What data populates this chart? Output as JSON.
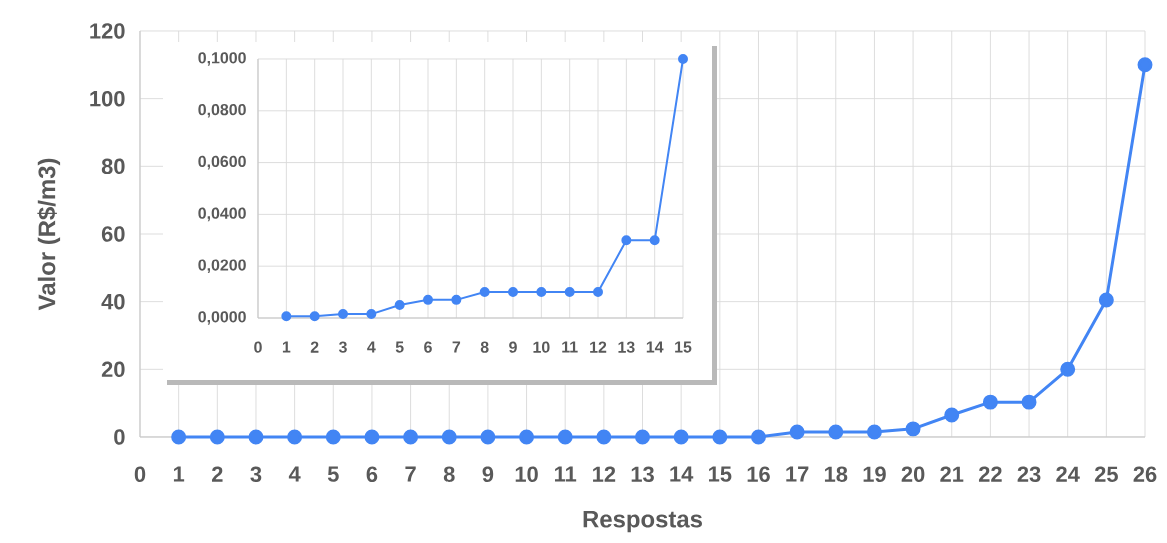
{
  "chart_data": [
    {
      "type": "line",
      "xlabel": "Respostas",
      "ylabel": "Valor (R$/m3)",
      "x": [
        1,
        2,
        3,
        4,
        5,
        6,
        7,
        8,
        9,
        10,
        11,
        12,
        13,
        14,
        15,
        16,
        17,
        18,
        19,
        20,
        21,
        22,
        23,
        24,
        25,
        26
      ],
      "values": [
        0,
        0,
        0,
        0,
        0,
        0,
        0,
        0,
        0,
        0,
        0,
        0,
        0,
        0,
        0,
        0,
        1.5,
        1.5,
        1.5,
        2.4,
        6.5,
        10.3,
        10.3,
        20,
        40.5,
        110
      ],
      "color": "#4285f4",
      "marker": "circle",
      "line_style": "solid",
      "grid": true,
      "xlim": [
        0,
        26
      ],
      "ylim": [
        0,
        120
      ],
      "xticks": [
        0,
        1,
        2,
        3,
        4,
        5,
        6,
        7,
        8,
        9,
        10,
        11,
        12,
        13,
        14,
        15,
        16,
        17,
        18,
        19,
        20,
        21,
        22,
        23,
        24,
        25,
        26
      ],
      "yticks": [
        0,
        20,
        40,
        60,
        80,
        100,
        120
      ]
    },
    {
      "type": "line",
      "x": [
        1,
        2,
        3,
        4,
        5,
        6,
        7,
        8,
        9,
        10,
        11,
        12,
        13,
        14,
        15
      ],
      "values": [
        0.0007,
        0.0007,
        0.0015,
        0.0015,
        0.005,
        0.007,
        0.007,
        0.01,
        0.01,
        0.01,
        0.01,
        0.01,
        0.03,
        0.03,
        0.1
      ],
      "color": "#4285f4",
      "marker": "circle",
      "line_style": "solid",
      "grid": true,
      "xlim": [
        0,
        15
      ],
      "ylim": [
        0,
        0.1
      ],
      "xticks": [
        0,
        1,
        2,
        3,
        4,
        5,
        6,
        7,
        8,
        9,
        10,
        11,
        12,
        13,
        14,
        15
      ],
      "yticks": [
        {
          "value": 0,
          "label": "0,0000"
        },
        {
          "value": 0.02,
          "label": "0,0200"
        },
        {
          "value": 0.04,
          "label": "0,0400"
        },
        {
          "value": 0.06,
          "label": "0,0600"
        },
        {
          "value": 0.08,
          "label": "0,0800"
        },
        {
          "value": 0.1,
          "label": "0,1000"
        }
      ]
    }
  ]
}
